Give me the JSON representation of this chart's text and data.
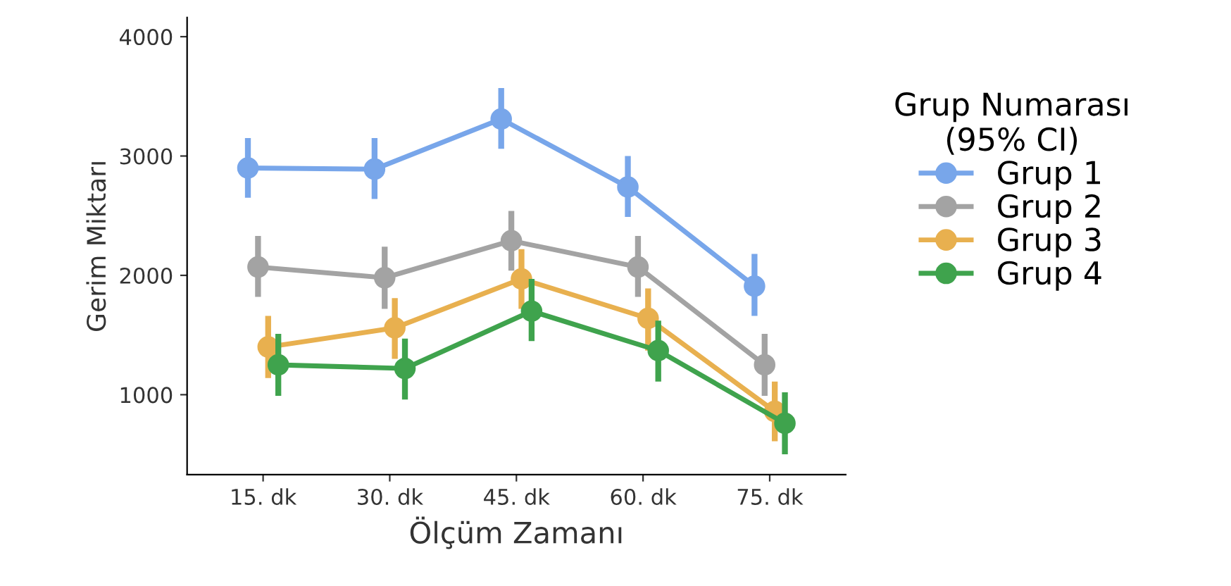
{
  "chart_data": {
    "type": "line",
    "xlabel": "Ölçüm Zamanı",
    "ylabel": "Gerim Miktarı",
    "legend_title": "Grup Numarası\n(95% CI)",
    "legend": "right",
    "marker": "circle",
    "line_style": "solid",
    "grid": false,
    "categories": [
      "15. dk",
      "30. dk",
      "45. dk",
      "60. dk",
      "75. dk"
    ],
    "ylim": [
      330,
      4160
    ],
    "yticks": [
      1000,
      2000,
      3000,
      4000
    ],
    "series": [
      {
        "name": "Grup 1",
        "color": "#78a6ea",
        "values": [
          2900,
          2890,
          3310,
          2740,
          1910
        ],
        "errors": [
          [
            2650,
            3150
          ],
          [
            2640,
            3150
          ],
          [
            3060,
            3570
          ],
          [
            2490,
            3000
          ],
          [
            1660,
            2180
          ]
        ]
      },
      {
        "name": "Grup 2",
        "color": "#a3a3a3",
        "values": [
          2070,
          1980,
          2290,
          2070,
          1250
        ],
        "errors": [
          [
            1820,
            2330
          ],
          [
            1720,
            2240
          ],
          [
            2040,
            2540
          ],
          [
            1820,
            2330
          ],
          [
            990,
            1510
          ]
        ]
      },
      {
        "name": "Grup 3",
        "color": "#e8b04f",
        "values": [
          1400,
          1560,
          1970,
          1640,
          860
        ],
        "errors": [
          [
            1140,
            1660
          ],
          [
            1300,
            1810
          ],
          [
            1720,
            2220
          ],
          [
            1370,
            1890
          ],
          [
            610,
            1110
          ]
        ]
      },
      {
        "name": "Grup 4",
        "color": "#3fa34d",
        "values": [
          1250,
          1220,
          1700,
          1370,
          760
        ],
        "errors": [
          [
            990,
            1510
          ],
          [
            960,
            1470
          ],
          [
            1450,
            1970
          ],
          [
            1110,
            1620
          ],
          [
            500,
            1020
          ]
        ]
      }
    ]
  }
}
